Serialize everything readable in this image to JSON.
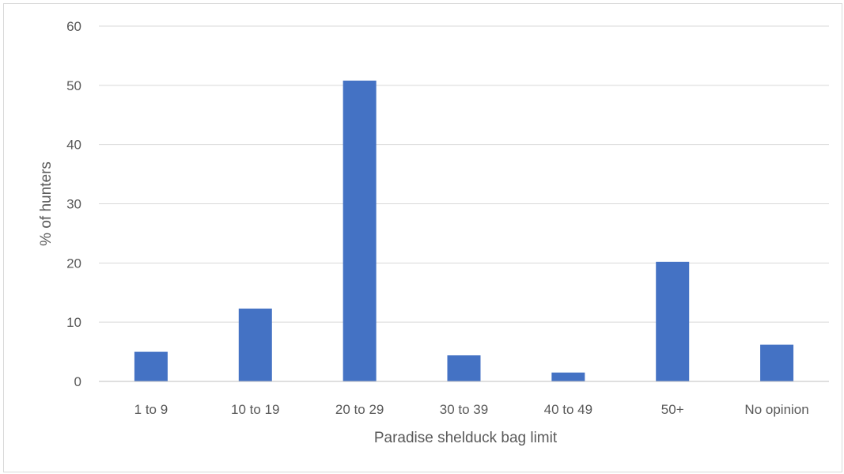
{
  "chart_data": {
    "type": "bar",
    "title": "",
    "xlabel": "Paradise shelduck bag limit",
    "ylabel": "% of hunters",
    "categories": [
      "1 to 9",
      "10 to 19",
      "20 to 29",
      "30 to 39",
      "40 to 49",
      "50+",
      "No opinion"
    ],
    "series": [
      {
        "values": [
          5.0,
          12.3,
          50.8,
          4.4,
          1.5,
          20.2,
          6.2
        ]
      }
    ],
    "ylim": [
      0,
      60
    ],
    "yticks": [
      0,
      10,
      20,
      30,
      40,
      50,
      60
    ],
    "grid": true,
    "legend": "none",
    "colors": {
      "bar": "#4472c4",
      "grid": "#d9d9d9",
      "axis": "#bfbfbf",
      "text": "#595959"
    }
  }
}
